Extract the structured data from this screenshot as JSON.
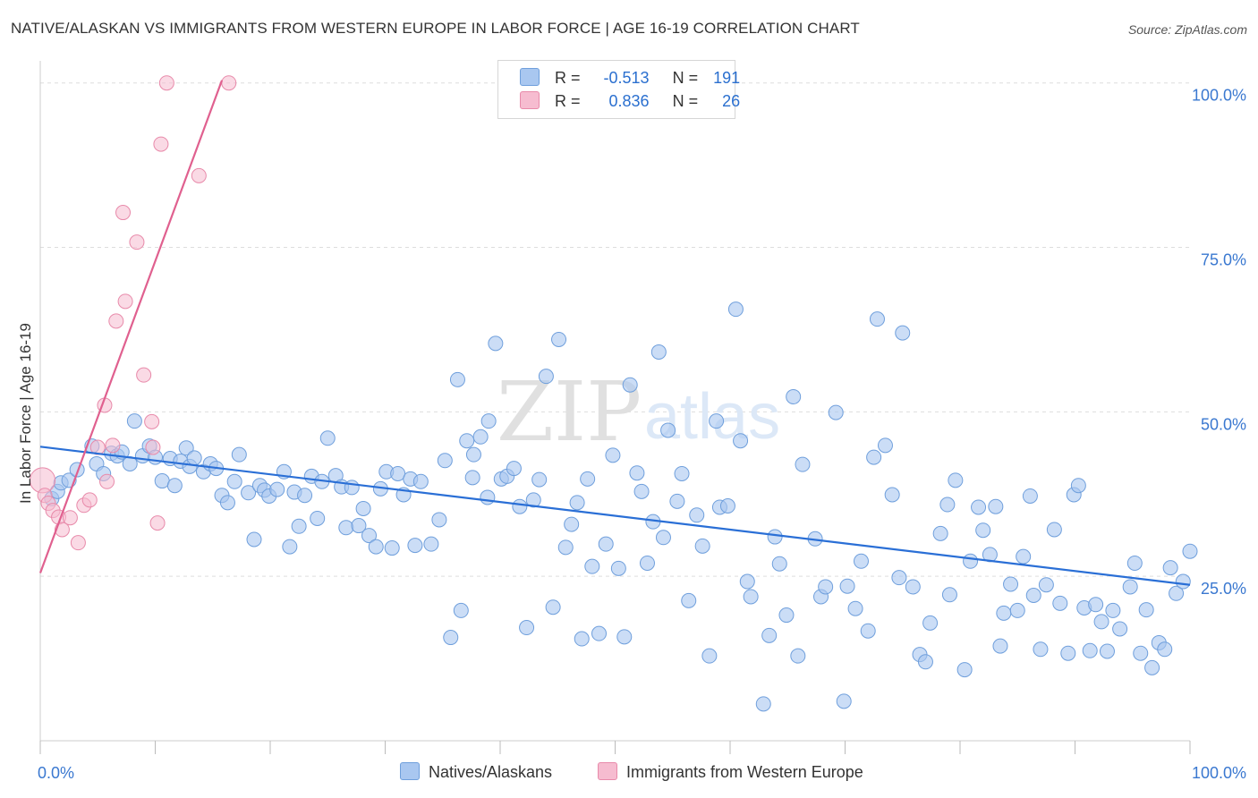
{
  "header": {
    "title": "NATIVE/ALASKAN VS IMMIGRANTS FROM WESTERN EUROPE IN LABOR FORCE | AGE 16-19 CORRELATION CHART",
    "source": "Source: ZipAtlas.com"
  },
  "watermark": {
    "zip": "ZIP",
    "atlas": "atlas"
  },
  "stats": {
    "blue": {
      "r_label": "R =",
      "r_value": "-0.513",
      "n_label": "N =",
      "n_value": "191",
      "color": "#a9c7f0"
    },
    "pink": {
      "r_label": "R =",
      "r_value": "0.836",
      "n_label": "N =",
      "n_value": "26",
      "color": "#f6bcd0"
    }
  },
  "legend": {
    "blue_label": "Natives/Alaskans",
    "pink_label": "Immigrants from Western Europe"
  },
  "colors": {
    "blue_fill": "#a9c7f0",
    "blue_stroke": "#6f9fdc",
    "blue_line": "#2a6fd6",
    "pink_fill": "#f6bcd0",
    "pink_stroke": "#e88aaa",
    "pink_line": "#e0608f",
    "axis_text": "#3a78d0",
    "grid": "#dddddd"
  },
  "chart_data": {
    "type": "scatter",
    "title": "NATIVE/ALASKAN VS IMMIGRANTS FROM WESTERN EUROPE IN LABOR FORCE | AGE 16-19 CORRELATION CHART",
    "xlabel": "",
    "ylabel": "In Labor Force | Age 16-19",
    "xlim": [
      0,
      100
    ],
    "ylim": [
      0,
      102
    ],
    "x_tick_labels": [
      {
        "v": 0,
        "label": "0.0%"
      },
      {
        "v": 100,
        "label": "100.0%"
      }
    ],
    "y_tick_labels": [
      {
        "v": 25,
        "label": "25.0%"
      },
      {
        "v": 50,
        "label": "50.0%"
      },
      {
        "v": 75,
        "label": "75.0%"
      },
      {
        "v": 100,
        "label": "100.0%"
      }
    ],
    "gridlines_y": [
      25,
      50,
      75,
      100
    ],
    "series": [
      {
        "name": "Natives/Alaskans",
        "r": -0.513,
        "n": 191,
        "trend": [
          [
            0,
            44.7
          ],
          [
            100,
            23.7
          ]
        ],
        "points": [
          [
            1.0,
            36.8
          ],
          [
            1.5,
            37.9
          ],
          [
            1.8,
            39.2
          ],
          [
            2.5,
            39.6
          ],
          [
            3.2,
            41.2
          ],
          [
            4.5,
            44.8
          ],
          [
            4.9,
            42.1
          ],
          [
            5.5,
            40.6
          ],
          [
            6.2,
            43.7
          ],
          [
            6.7,
            43.3
          ],
          [
            7.1,
            43.9
          ],
          [
            7.8,
            42.1
          ],
          [
            8.2,
            48.6
          ],
          [
            8.9,
            43.3
          ],
          [
            9.5,
            44.8
          ],
          [
            10.0,
            43.1
          ],
          [
            10.6,
            39.5
          ],
          [
            11.3,
            42.9
          ],
          [
            11.7,
            38.8
          ],
          [
            12.2,
            42.5
          ],
          [
            12.7,
            44.5
          ],
          [
            13.0,
            41.7
          ],
          [
            13.4,
            43.0
          ],
          [
            14.2,
            40.9
          ],
          [
            14.8,
            42.1
          ],
          [
            15.3,
            41.4
          ],
          [
            15.8,
            37.3
          ],
          [
            16.3,
            36.2
          ],
          [
            16.9,
            39.4
          ],
          [
            17.3,
            43.5
          ],
          [
            18.1,
            37.7
          ],
          [
            18.6,
            30.6
          ],
          [
            19.1,
            38.8
          ],
          [
            19.5,
            38.1
          ],
          [
            19.9,
            37.2
          ],
          [
            20.6,
            38.2
          ],
          [
            21.2,
            40.9
          ],
          [
            21.7,
            29.5
          ],
          [
            22.1,
            37.8
          ],
          [
            22.5,
            32.6
          ],
          [
            23.0,
            37.3
          ],
          [
            23.6,
            40.2
          ],
          [
            24.1,
            33.8
          ],
          [
            24.5,
            39.4
          ],
          [
            25.0,
            46.0
          ],
          [
            25.7,
            40.3
          ],
          [
            26.2,
            38.6
          ],
          [
            26.6,
            32.4
          ],
          [
            27.1,
            38.5
          ],
          [
            27.7,
            32.7
          ],
          [
            28.1,
            35.3
          ],
          [
            28.6,
            31.2
          ],
          [
            29.2,
            29.5
          ],
          [
            29.6,
            38.3
          ],
          [
            30.1,
            40.9
          ],
          [
            30.6,
            29.3
          ],
          [
            31.1,
            40.6
          ],
          [
            31.6,
            37.4
          ],
          [
            32.2,
            39.8
          ],
          [
            32.6,
            29.7
          ],
          [
            33.1,
            39.4
          ],
          [
            34.0,
            29.9
          ],
          [
            34.7,
            33.6
          ],
          [
            35.2,
            42.6
          ],
          [
            35.7,
            15.7
          ],
          [
            36.3,
            54.9
          ],
          [
            36.6,
            19.8
          ],
          [
            37.1,
            45.6
          ],
          [
            37.6,
            40.0
          ],
          [
            37.7,
            43.5
          ],
          [
            38.3,
            46.2
          ],
          [
            38.9,
            37.0
          ],
          [
            39.0,
            48.6
          ],
          [
            39.6,
            60.4
          ],
          [
            40.1,
            39.8
          ],
          [
            40.6,
            40.2
          ],
          [
            41.2,
            41.4
          ],
          [
            41.7,
            35.6
          ],
          [
            42.3,
            17.2
          ],
          [
            42.9,
            36.6
          ],
          [
            43.4,
            39.7
          ],
          [
            44.0,
            55.4
          ],
          [
            44.6,
            20.3
          ],
          [
            45.1,
            61.0
          ],
          [
            45.7,
            29.4
          ],
          [
            46.2,
            32.9
          ],
          [
            46.7,
            36.2
          ],
          [
            47.1,
            15.5
          ],
          [
            47.6,
            39.8
          ],
          [
            48.0,
            26.5
          ],
          [
            48.6,
            16.3
          ],
          [
            49.2,
            29.9
          ],
          [
            49.8,
            43.4
          ],
          [
            50.3,
            26.2
          ],
          [
            50.8,
            15.8
          ],
          [
            51.3,
            54.1
          ],
          [
            51.9,
            40.7
          ],
          [
            52.3,
            37.9
          ],
          [
            52.8,
            27.0
          ],
          [
            53.3,
            33.3
          ],
          [
            53.8,
            59.1
          ],
          [
            54.2,
            30.9
          ],
          [
            54.6,
            47.2
          ],
          [
            55.4,
            36.4
          ],
          [
            55.8,
            40.6
          ],
          [
            56.4,
            21.3
          ],
          [
            57.1,
            34.3
          ],
          [
            57.6,
            29.6
          ],
          [
            58.2,
            12.9
          ],
          [
            58.8,
            48.6
          ],
          [
            59.1,
            35.5
          ],
          [
            59.8,
            35.7
          ],
          [
            60.5,
            65.6
          ],
          [
            60.9,
            45.6
          ],
          [
            61.5,
            24.2
          ],
          [
            61.8,
            21.9
          ],
          [
            62.9,
            5.6
          ],
          [
            63.4,
            16.0
          ],
          [
            63.9,
            31.0
          ],
          [
            64.3,
            26.9
          ],
          [
            64.9,
            19.1
          ],
          [
            65.5,
            52.3
          ],
          [
            65.9,
            12.9
          ],
          [
            66.3,
            42.0
          ],
          [
            67.4,
            30.7
          ],
          [
            67.9,
            21.9
          ],
          [
            68.3,
            23.4
          ],
          [
            69.2,
            49.9
          ],
          [
            69.9,
            6.0
          ],
          [
            70.2,
            23.5
          ],
          [
            70.9,
            20.1
          ],
          [
            71.4,
            27.3
          ],
          [
            72.0,
            16.7
          ],
          [
            72.5,
            43.1
          ],
          [
            72.8,
            64.1
          ],
          [
            73.5,
            44.9
          ],
          [
            74.1,
            37.4
          ],
          [
            74.7,
            24.8
          ],
          [
            75.0,
            62.0
          ],
          [
            75.9,
            23.4
          ],
          [
            76.5,
            13.1
          ],
          [
            77.0,
            12.0
          ],
          [
            77.4,
            17.9
          ],
          [
            78.3,
            31.5
          ],
          [
            78.9,
            35.9
          ],
          [
            79.1,
            22.2
          ],
          [
            79.6,
            39.6
          ],
          [
            80.4,
            10.8
          ],
          [
            80.9,
            27.3
          ],
          [
            81.6,
            35.5
          ],
          [
            82.0,
            32.0
          ],
          [
            82.6,
            28.3
          ],
          [
            83.1,
            35.6
          ],
          [
            83.5,
            14.4
          ],
          [
            83.8,
            19.4
          ],
          [
            84.4,
            23.8
          ],
          [
            85.0,
            19.8
          ],
          [
            85.5,
            28.0
          ],
          [
            86.1,
            37.2
          ],
          [
            86.4,
            22.1
          ],
          [
            87.0,
            13.9
          ],
          [
            87.5,
            23.7
          ],
          [
            88.2,
            32.1
          ],
          [
            88.7,
            20.9
          ],
          [
            89.4,
            13.3
          ],
          [
            89.9,
            37.4
          ],
          [
            90.3,
            38.8
          ],
          [
            90.8,
            20.2
          ],
          [
            91.3,
            13.7
          ],
          [
            91.8,
            20.7
          ],
          [
            92.3,
            18.1
          ],
          [
            92.8,
            13.6
          ],
          [
            93.3,
            19.8
          ],
          [
            93.9,
            17.0
          ],
          [
            94.8,
            23.4
          ],
          [
            95.2,
            27.0
          ],
          [
            95.7,
            13.3
          ],
          [
            96.2,
            19.9
          ],
          [
            96.7,
            11.1
          ],
          [
            97.3,
            14.9
          ],
          [
            97.8,
            13.9
          ],
          [
            98.3,
            26.3
          ],
          [
            98.8,
            22.4
          ],
          [
            99.4,
            24.2
          ],
          [
            100.0,
            28.8
          ]
        ]
      },
      {
        "name": "Immigrants from Western Europe",
        "r": 0.836,
        "n": 26,
        "trend": [
          [
            0,
            25.5
          ],
          [
            15.8,
            100.4
          ]
        ],
        "points": [
          [
            0.2,
            39.6
          ],
          [
            0.4,
            37.3
          ],
          [
            0.7,
            36.1
          ],
          [
            1.1,
            35.0
          ],
          [
            1.6,
            34.0
          ],
          [
            1.9,
            32.1
          ],
          [
            2.6,
            33.9
          ],
          [
            3.3,
            30.1
          ],
          [
            3.8,
            35.8
          ],
          [
            4.3,
            36.6
          ],
          [
            5.0,
            44.6
          ],
          [
            5.6,
            51.0
          ],
          [
            5.8,
            39.4
          ],
          [
            6.3,
            44.9
          ],
          [
            6.6,
            63.8
          ],
          [
            7.2,
            80.3
          ],
          [
            7.4,
            66.8
          ],
          [
            8.4,
            75.8
          ],
          [
            9.0,
            55.6
          ],
          [
            9.7,
            48.5
          ],
          [
            9.8,
            44.6
          ],
          [
            10.2,
            33.1
          ],
          [
            10.5,
            90.7
          ],
          [
            11.0,
            100.0
          ],
          [
            13.8,
            85.9
          ],
          [
            16.4,
            100.0
          ]
        ]
      }
    ]
  }
}
